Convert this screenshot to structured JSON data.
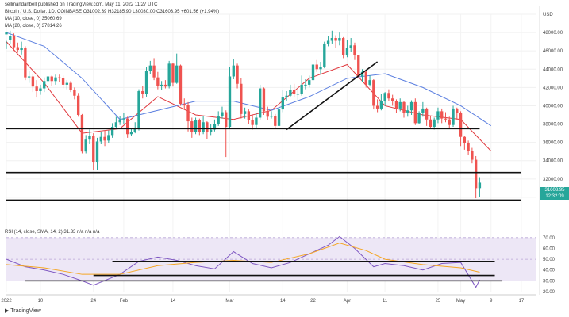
{
  "header": {
    "publisher": "sellmandanbell published on TradingView.com, May 11, 2022 11:27 UTC",
    "symbol_line": "Bitcoin / U.S. Dollar, 1D, COINBASE  O31002.39  H32185.90  L30030.00  C31603.95  +601.56 (+1.94%)",
    "ma10_line": "MA (10, close, 0)  35060.69",
    "ma20_line": "MA (20, close, 0)  37814.26",
    "currency": "USD"
  },
  "price_tag": {
    "price": "31603.95",
    "time": "12:32:09"
  },
  "rsi_label": "RSI (14, close, SMA, 14, 2)  31.33  n/a  n/a  n/a",
  "footer": {
    "brand": "TradingView"
  },
  "colors": {
    "up": "#26a69a",
    "down": "#ef5350",
    "ma10": "#e0393e",
    "ma20": "#5b7fe0",
    "rsi": "#7e57c2",
    "rsi_sma": "#f5a623",
    "rsi_band": "#ede7f6"
  },
  "chart_data": [
    {
      "type": "line",
      "title": "Bitcoin / U.S. Dollar, 1D, COINBASE",
      "xlabel": "",
      "ylabel": "",
      "ylim": [
        28000,
        50000
      ],
      "grid": true,
      "y_ticks": [
        30000,
        32000,
        34000,
        36000,
        38000,
        40000,
        42000,
        44000,
        46000,
        48000,
        50000
      ],
      "y_tick_labels": [
        "30000.00",
        "32000.00",
        "34000.00",
        "36000.00",
        "38000.00",
        "40000.00",
        "42000.00",
        "44000.00",
        "46000.00",
        "48000.00",
        "USD"
      ],
      "x_tick_labels": [
        "2022",
        "10",
        "24",
        "Feb",
        "14",
        "Mar",
        "14",
        "22",
        "Apr",
        "11",
        "25",
        "May",
        "9",
        "17"
      ],
      "x_tick_days": [
        0,
        9,
        23,
        31,
        44,
        59,
        73,
        81,
        90,
        100,
        114,
        120,
        128,
        136
      ],
      "series": [
        {
          "name": "MA (10, close, 0)",
          "x": [
            0,
            10,
            20,
            30,
            40,
            50,
            60,
            70,
            80,
            90,
            100,
            110,
            120,
            128
          ],
          "y": [
            47000,
            42500,
            37000,
            37500,
            41000,
            39000,
            38500,
            39500,
            43000,
            44500,
            40000,
            39000,
            38500,
            35060
          ]
        },
        {
          "name": "MA (20, close, 0)",
          "x": [
            0,
            10,
            20,
            30,
            40,
            50,
            60,
            70,
            80,
            90,
            100,
            110,
            120,
            128
          ],
          "y": [
            48000,
            46500,
            43000,
            38500,
            39500,
            40500,
            40500,
            39500,
            41000,
            43000,
            43500,
            42000,
            40000,
            37814
          ]
        }
      ],
      "candles": [
        [
          0,
          47800,
          48000,
          47100,
          46200
        ],
        [
          1,
          47200,
          47600,
          48200,
          46800
        ],
        [
          2,
          47600,
          46400,
          47900,
          46000
        ],
        [
          3,
          46400,
          46100,
          46900,
          45800
        ],
        [
          4,
          46100,
          46300,
          47000,
          45600
        ],
        [
          5,
          46300,
          43100,
          46500,
          42800
        ],
        [
          6,
          43100,
          43200,
          43800,
          42500
        ],
        [
          7,
          43200,
          42100,
          43500,
          41500
        ],
        [
          8,
          42100,
          41600,
          42800,
          40900
        ],
        [
          9,
          41600,
          41900,
          42300,
          41200
        ],
        [
          10,
          41900,
          42700,
          43100,
          41500
        ],
        [
          11,
          42700,
          43200,
          43500,
          42300
        ],
        [
          12,
          43200,
          42700,
          43300,
          42200
        ],
        [
          13,
          42700,
          43100,
          43400,
          42300
        ],
        [
          14,
          43100,
          43000,
          43400,
          42600
        ],
        [
          15,
          43000,
          42300,
          43300,
          41900
        ],
        [
          16,
          42300,
          42500,
          42800,
          41800
        ],
        [
          17,
          42500,
          41700,
          42700,
          41500
        ],
        [
          18,
          41700,
          41100,
          42000,
          40700
        ],
        [
          19,
          41100,
          39000,
          41400,
          38800
        ],
        [
          20,
          39000,
          35000,
          39100,
          34800
        ],
        [
          21,
          35000,
          36300,
          36800,
          34800
        ],
        [
          22,
          36300,
          36700,
          37400,
          35800
        ],
        [
          23,
          36700,
          33800,
          37000,
          33000
        ],
        [
          24,
          33800,
          36100,
          36500,
          33000
        ],
        [
          25,
          36100,
          36600,
          37100,
          35800
        ],
        [
          26,
          36600,
          36200,
          37300,
          35600
        ],
        [
          27,
          36200,
          36800,
          37300,
          35900
        ],
        [
          28,
          36800,
          37700,
          38100,
          36500
        ],
        [
          29,
          37700,
          38200,
          38800,
          37500
        ],
        [
          30,
          38200,
          38500,
          38900,
          37900
        ],
        [
          31,
          38500,
          38600,
          39200,
          38000
        ],
        [
          32,
          38600,
          36900,
          38800,
          36500
        ],
        [
          33,
          36900,
          37100,
          37600,
          36700
        ],
        [
          34,
          37100,
          37500,
          38200,
          37000
        ],
        [
          35,
          37500,
          41600,
          41800,
          37300
        ],
        [
          36,
          41600,
          41300,
          42200,
          40800
        ],
        [
          37,
          41300,
          43800,
          44200,
          41000
        ],
        [
          38,
          43800,
          44400,
          44900,
          43500
        ],
        [
          39,
          44400,
          43100,
          45200,
          42800
        ],
        [
          40,
          43100,
          42200,
          43700,
          41800
        ],
        [
          41,
          42200,
          42300,
          42700,
          41700
        ],
        [
          42,
          42300,
          42100,
          42800,
          41900
        ],
        [
          43,
          42100,
          44600,
          44900,
          41900
        ],
        [
          44,
          44600,
          42500,
          44700,
          42100
        ],
        [
          45,
          42500,
          44400,
          45700,
          42400
        ],
        [
          46,
          44400,
          40200,
          44500,
          40000
        ],
        [
          47,
          40200,
          40100,
          40800,
          39600
        ],
        [
          48,
          40100,
          38300,
          40400,
          37200
        ],
        [
          49,
          38300,
          37100,
          38700,
          36500
        ],
        [
          50,
          37100,
          38400,
          38700,
          36900
        ],
        [
          51,
          38400,
          37100,
          38600,
          36800
        ],
        [
          52,
          37100,
          38200,
          38900,
          36900
        ],
        [
          53,
          38200,
          37100,
          38300,
          36400
        ],
        [
          54,
          37100,
          37400,
          38000,
          36800
        ],
        [
          55,
          37400,
          38000,
          38500,
          37200
        ],
        [
          56,
          38000,
          38900,
          39400,
          37800
        ],
        [
          57,
          38900,
          39300,
          39900,
          38600
        ],
        [
          58,
          39300,
          37700,
          39500,
          34400
        ],
        [
          59,
          37700,
          43200,
          44200,
          37500
        ],
        [
          60,
          43200,
          44400,
          45100,
          42900
        ],
        [
          61,
          44400,
          42400,
          44600,
          41900
        ],
        [
          62,
          42400,
          39100,
          43000,
          38600
        ],
        [
          63,
          39100,
          39400,
          39800,
          38600
        ],
        [
          64,
          39400,
          38400,
          39600,
          38000
        ],
        [
          65,
          38400,
          37900,
          39000,
          37400
        ],
        [
          66,
          37900,
          38700,
          39200,
          37500
        ],
        [
          67,
          38700,
          41900,
          42300,
          38500
        ],
        [
          68,
          41900,
          39400,
          42000,
          39000
        ],
        [
          69,
          39400,
          38800,
          39900,
          38400
        ],
        [
          70,
          38800,
          38900,
          39400,
          38600
        ],
        [
          71,
          38900,
          37800,
          39100,
          37600
        ],
        [
          72,
          37800,
          39600,
          39900,
          37700
        ],
        [
          73,
          39600,
          40900,
          41700,
          39300
        ],
        [
          74,
          40900,
          41100,
          41600,
          40500
        ],
        [
          75,
          41100,
          41700,
          42300,
          40900
        ],
        [
          76,
          41700,
          41300,
          42400,
          40900
        ],
        [
          77,
          41300,
          41300,
          41800,
          40500
        ],
        [
          78,
          41300,
          42300,
          43300,
          41100
        ],
        [
          79,
          42300,
          42300,
          42900,
          41800
        ],
        [
          80,
          42300,
          42800,
          43300,
          42000
        ],
        [
          81,
          42800,
          44500,
          44800,
          42700
        ],
        [
          82,
          44500,
          44000,
          45000,
          43700
        ],
        [
          83,
          44000,
          44200,
          44800,
          43500
        ],
        [
          84,
          44200,
          46800,
          47000,
          44100
        ],
        [
          85,
          46800,
          47100,
          47600,
          46500
        ],
        [
          86,
          47100,
          47400,
          48200,
          46800
        ],
        [
          87,
          47400,
          47100,
          47700,
          46300
        ],
        [
          88,
          47100,
          47400,
          48000,
          46600
        ],
        [
          89,
          47400,
          45500,
          47500,
          45200
        ],
        [
          90,
          45500,
          46300,
          47200,
          45300
        ],
        [
          91,
          46300,
          46600,
          47400,
          45900
        ],
        [
          92,
          46600,
          45500,
          46900,
          45000
        ],
        [
          93,
          45500,
          43200,
          45500,
          43100
        ],
        [
          94,
          43200,
          43700,
          44000,
          42600
        ],
        [
          95,
          43700,
          42300,
          43800,
          42000
        ],
        [
          96,
          42300,
          42800,
          43300,
          42100
        ],
        [
          97,
          42800,
          40000,
          42900,
          39600
        ],
        [
          98,
          40000,
          39700,
          40700,
          39300
        ],
        [
          99,
          39700,
          40500,
          41300,
          39500
        ],
        [
          100,
          40500,
          41400,
          41500,
          40000
        ],
        [
          101,
          41400,
          40800,
          41800,
          40500
        ],
        [
          102,
          40800,
          40500,
          41200,
          40000
        ],
        [
          103,
          40500,
          39700,
          40700,
          39200
        ],
        [
          104,
          39700,
          40400,
          40800,
          39400
        ],
        [
          105,
          40400,
          39200,
          40500,
          38700
        ],
        [
          106,
          39200,
          39500,
          40000,
          38800
        ],
        [
          107,
          39500,
          40400,
          40600,
          39000
        ],
        [
          108,
          40400,
          38100,
          40800,
          37900
        ],
        [
          109,
          38100,
          39200,
          39400,
          38000
        ],
        [
          110,
          39200,
          39700,
          40400,
          38800
        ],
        [
          111,
          39700,
          38500,
          39800,
          37800
        ],
        [
          112,
          38500,
          37700,
          38900,
          37600
        ],
        [
          113,
          37700,
          38500,
          38700,
          37400
        ],
        [
          114,
          38500,
          39400,
          39800,
          38100
        ],
        [
          115,
          39400,
          38600,
          39700,
          38100
        ],
        [
          116,
          38600,
          38500,
          39300,
          38200
        ],
        [
          117,
          38500,
          37900,
          38800,
          37600
        ],
        [
          118,
          37900,
          39700,
          40000,
          37700
        ],
        [
          119,
          39700,
          39200,
          39800,
          38500
        ],
        [
          120,
          39200,
          36600,
          39400,
          35600
        ],
        [
          121,
          36600,
          35900,
          36700,
          35200
        ],
        [
          122,
          35900,
          35100,
          36200,
          34600
        ],
        [
          123,
          35100,
          34100,
          35400,
          33700
        ],
        [
          124,
          34100,
          31000,
          34500,
          29900
        ],
        [
          125,
          31000,
          31600,
          32200,
          30000
        ]
      ],
      "trendlines": [
        {
          "x1": 0,
          "y1": 37500,
          "x2": 125,
          "y2": 37500
        },
        {
          "x1": 0,
          "y1": 32700,
          "x2": 136,
          "y2": 32700
        },
        {
          "x1": 0,
          "y1": 29700,
          "x2": 136,
          "y2": 29700
        },
        {
          "x1": 74,
          "y1": 37400,
          "x2": 98,
          "y2": 44800
        }
      ]
    },
    {
      "type": "line",
      "title": "RSI (14, close, SMA, 14, 2)",
      "ylim": [
        20,
        75
      ],
      "y_ticks": [
        20,
        30,
        40,
        50,
        60,
        70
      ],
      "y_tick_labels": [
        "20.00",
        "30.00",
        "40.00",
        "50.00",
        "60.00",
        "70.00"
      ],
      "band": [
        30,
        70
      ],
      "series": [
        {
          "name": "RSI",
          "x": [
            0,
            5,
            10,
            15,
            20,
            23,
            30,
            35,
            40,
            45,
            50,
            55,
            60,
            65,
            70,
            75,
            80,
            85,
            88,
            92,
            97,
            100,
            105,
            110,
            115,
            120,
            124,
            125
          ],
          "y": [
            50,
            43,
            40,
            36,
            30,
            26,
            36,
            48,
            52,
            49,
            44,
            41,
            57,
            46,
            42,
            47,
            55,
            63,
            71,
            60,
            43,
            46,
            44,
            40,
            46,
            47,
            24,
            31
          ]
        },
        {
          "name": "SMA",
          "x": [
            0,
            10,
            20,
            30,
            40,
            50,
            60,
            70,
            80,
            88,
            95,
            100,
            110,
            120,
            125
          ],
          "y": [
            45,
            42,
            36,
            36,
            44,
            47,
            49,
            47,
            55,
            65,
            58,
            50,
            45,
            42,
            38
          ]
        }
      ],
      "trendlines": [
        {
          "x1": 28,
          "y1": 48,
          "x2": 129,
          "y2": 48
        },
        {
          "x1": 23,
          "y1": 35,
          "x2": 129,
          "y2": 35
        },
        {
          "x1": 5,
          "y1": 30,
          "x2": 131,
          "y2": 30
        }
      ]
    }
  ]
}
